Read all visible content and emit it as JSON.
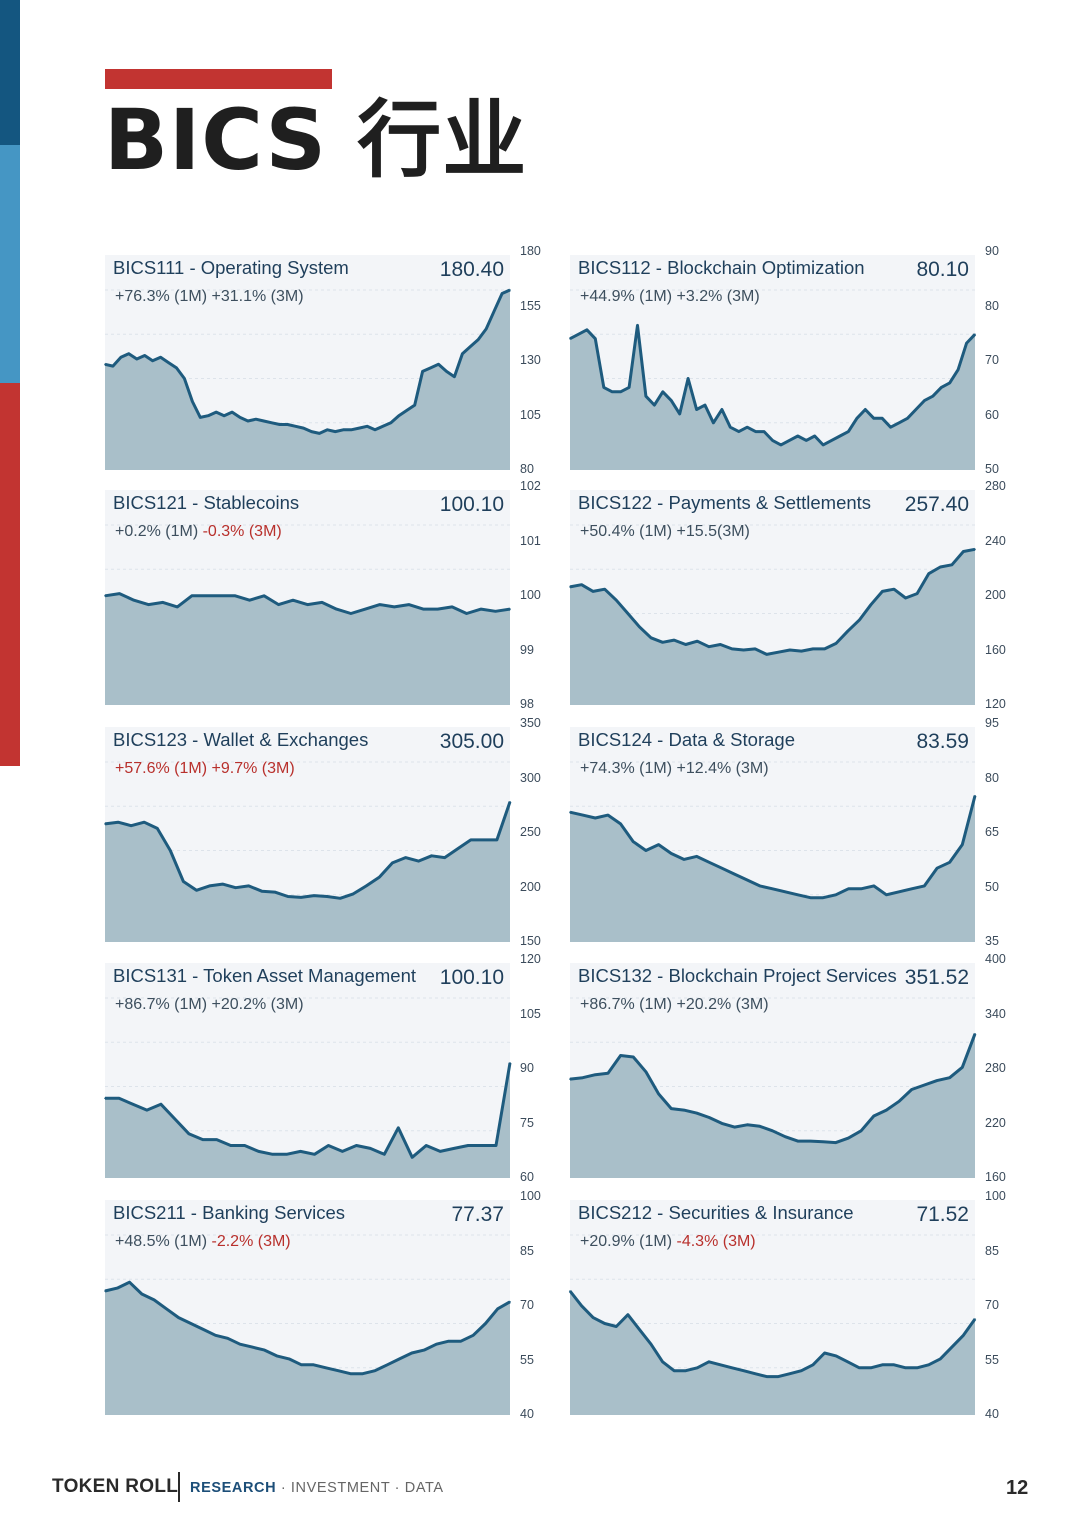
{
  "page": {
    "title": "BICS 行业",
    "page_number": "12",
    "footer": {
      "brand": "TOKEN ROLL",
      "tag_accent": "RESEARCH",
      "tag_rest": "· INVESTMENT · DATA"
    }
  },
  "colors": {
    "accent_red": "#c23431",
    "band_dark_blue": "#145680",
    "band_light_blue": "#4596c4",
    "line": "#1e5b7e",
    "area": "#a9bfc9",
    "panel_bg": "#f3f5f8",
    "negative": "#b8302c"
  },
  "chart_data": [
    {
      "type": "area",
      "code": "BICS111",
      "title": "BICS111 - Operating System",
      "last": "180.40",
      "change_1m": "+76.3% (1M)",
      "change_1m_sign": "pos",
      "change_3m": "+31.1% (3M)",
      "change_3m_sign": "pos",
      "yticks": [
        "180",
        "155",
        "130",
        "105",
        "80"
      ],
      "ylim": [
        80,
        180
      ],
      "values": [
        138,
        137,
        142,
        144,
        141,
        143,
        140,
        142,
        139,
        136,
        130,
        117,
        108,
        109,
        111,
        109,
        111,
        108,
        106,
        107,
        106,
        105,
        104,
        104,
        103,
        102,
        100,
        99,
        101,
        100,
        101,
        101,
        102,
        103,
        101,
        103,
        105,
        109,
        112,
        115,
        134,
        136,
        138,
        134,
        131,
        144,
        148,
        152,
        158,
        168,
        178,
        180
      ]
    },
    {
      "type": "area",
      "code": "BICS112",
      "title": "BICS112 - Blockchain Optimization",
      "last": "80.10",
      "change_1m": "+44.9% (1M)",
      "change_1m_sign": "pos",
      "change_3m": "+3.2% (3M)",
      "change_3m_sign": "pos",
      "yticks": [
        "90",
        "80",
        "70",
        "60",
        "50"
      ],
      "ylim": [
        50,
        90
      ],
      "values": [
        79,
        80,
        81,
        79,
        68,
        67,
        67,
        68,
        82,
        66,
        64,
        67,
        65,
        62,
        70,
        63,
        64,
        60,
        63,
        59,
        58,
        59,
        58,
        58,
        56,
        55,
        56,
        57,
        56,
        57,
        55,
        56,
        57,
        58,
        61,
        63,
        61,
        61,
        59,
        60,
        61,
        63,
        65,
        66,
        68,
        69,
        72,
        78,
        80
      ]
    },
    {
      "type": "area",
      "code": "BICS121",
      "title": "BICS121 - Stablecoins",
      "last": "100.10",
      "change_1m": "+0.2% (1M)",
      "change_1m_sign": "pos",
      "change_3m": "-0.3% (3M)",
      "change_3m_sign": "neg",
      "yticks": [
        "102",
        "101",
        "100",
        "99",
        "98"
      ],
      "ylim": [
        98,
        102
      ],
      "values": [
        100.4,
        100.45,
        100.3,
        100.2,
        100.25,
        100.15,
        100.4,
        100.4,
        100.4,
        100.4,
        100.3,
        100.4,
        100.2,
        100.3,
        100.2,
        100.25,
        100.1,
        100.0,
        100.1,
        100.2,
        100.15,
        100.2,
        100.1,
        100.1,
        100.15,
        100.0,
        100.1,
        100.05,
        100.1
      ]
    },
    {
      "type": "area",
      "code": "BICS122",
      "title": "BICS122 - Payments & Settlements",
      "last": "257.40",
      "change_1m": "+50.4% (1M)",
      "change_1m_sign": "pos",
      "change_3m": "+15.5(3M)",
      "change_3m_sign": "pos",
      "yticks": [
        "280",
        "240",
        "200",
        "160",
        "120"
      ],
      "ylim": [
        120,
        280
      ],
      "values": [
        224,
        226,
        220,
        222,
        212,
        200,
        188,
        178,
        174,
        176,
        172,
        175,
        170,
        172,
        168,
        167,
        168,
        163,
        165,
        167,
        166,
        168,
        168,
        173,
        184,
        194,
        208,
        220,
        222,
        214,
        218,
        236,
        242,
        244,
        256,
        258
      ]
    },
    {
      "type": "area",
      "code": "BICS123",
      "title": "BICS123 - Wallet & Exchanges",
      "last": "305.00",
      "change_1m": "+57.6% (1M)",
      "change_1m_sign": "neg",
      "change_3m": "+9.7% (3M)",
      "change_3m_sign": "neg",
      "yticks": [
        "350",
        "300",
        "250",
        "200",
        "150"
      ],
      "ylim": [
        150,
        350
      ],
      "values": [
        280,
        282,
        278,
        282,
        275,
        250,
        215,
        205,
        210,
        212,
        208,
        210,
        204,
        203,
        198,
        197,
        199,
        198,
        196,
        201,
        210,
        220,
        236,
        242,
        238,
        244,
        242,
        252,
        262,
        262,
        262,
        305
      ]
    },
    {
      "type": "area",
      "code": "BICS124",
      "title": "BICS124 - Data & Storage",
      "last": "83.59",
      "change_1m": "+74.3% (1M)",
      "change_1m_sign": "pos",
      "change_3m": "+12.4% (3M)",
      "change_3m_sign": "pos",
      "yticks": [
        "95",
        "80",
        "65",
        "50",
        "35"
      ],
      "ylim": [
        35,
        95
      ],
      "values": [
        78,
        77,
        76,
        77,
        74,
        68,
        65,
        67,
        64,
        62,
        63,
        61,
        59,
        57,
        55,
        53,
        52,
        51,
        50,
        49,
        49,
        50,
        52,
        52,
        53,
        50,
        51,
        52,
        53,
        59,
        61,
        67,
        83.59
      ]
    },
    {
      "type": "area",
      "code": "BICS131",
      "title": "BICS131 - Token Asset Management",
      "last": "100.10",
      "change_1m": "+86.7% (1M)",
      "change_1m_sign": "pos",
      "change_3m": "+20.2% (3M)",
      "change_3m_sign": "pos",
      "yticks": [
        "120",
        "105",
        "90",
        "75",
        "60"
      ],
      "ylim": [
        60,
        120
      ],
      "values": [
        86,
        86,
        84,
        82,
        84,
        79,
        74,
        72,
        72,
        70,
        70,
        68,
        67,
        67,
        68,
        67,
        70,
        68,
        70,
        69,
        67,
        76,
        66,
        70,
        68,
        69,
        70,
        70,
        70,
        98
      ]
    },
    {
      "type": "area",
      "code": "BICS132",
      "title": "BICS132 - Blockchain Project Services",
      "last": "351.52",
      "change_1m": "+86.7% (1M)",
      "change_1m_sign": "pos",
      "change_3m": "+20.2% (3M)",
      "change_3m_sign": "pos",
      "yticks": [
        "400",
        "340",
        "280",
        "220",
        "160"
      ],
      "ylim": [
        160,
        400
      ],
      "values": [
        290,
        292,
        296,
        298,
        322,
        320,
        300,
        270,
        250,
        248,
        244,
        238,
        230,
        225,
        228,
        226,
        220,
        212,
        206,
        206,
        205,
        204,
        210,
        220,
        240,
        248,
        260,
        276,
        282,
        288,
        292,
        306,
        351.52
      ]
    },
    {
      "type": "area",
      "code": "BICS211",
      "title": "BICS211 - Banking Services",
      "last": "77.37",
      "change_1m": "+48.5% (1M)",
      "change_1m_sign": "pos",
      "change_3m": "-2.2% (3M)",
      "change_3m_sign": "neg",
      "yticks": [
        "100",
        "85",
        "70",
        "55",
        "40"
      ],
      "ylim": [
        40,
        100
      ],
      "values": [
        81,
        82,
        84,
        80,
        78,
        75,
        72,
        70,
        68,
        66,
        65,
        63,
        62,
        61,
        59,
        58,
        56,
        56,
        55,
        54,
        53,
        53,
        54,
        56,
        58,
        60,
        61,
        63,
        64,
        64,
        66,
        70,
        75,
        77.37
      ]
    },
    {
      "type": "area",
      "code": "BICS212",
      "title": "BICS212 - Securities & Insurance",
      "last": "71.52",
      "change_1m": "+20.9% (1M)",
      "change_1m_sign": "pos",
      "change_3m": "-4.3% (3M)",
      "change_3m_sign": "neg",
      "yticks": [
        "100",
        "85",
        "70",
        "55",
        "40"
      ],
      "ylim": [
        40,
        100
      ],
      "values": [
        81,
        76,
        72,
        70,
        69,
        73,
        68,
        63,
        57,
        54,
        54,
        55,
        57,
        56,
        55,
        54,
        53,
        52,
        52,
        53,
        54,
        56,
        60,
        59,
        57,
        55,
        55,
        56,
        56,
        55,
        55,
        56,
        58,
        62,
        66,
        71.52
      ]
    }
  ]
}
